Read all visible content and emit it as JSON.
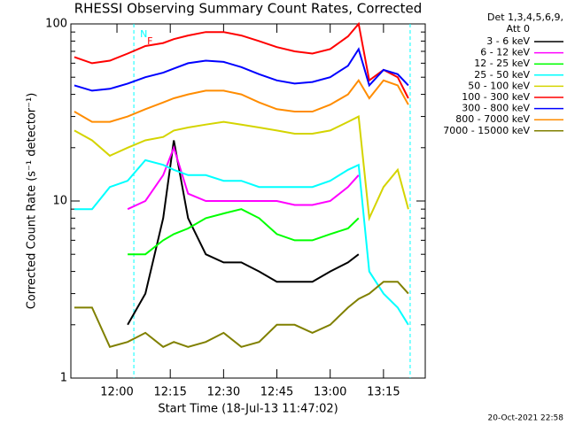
{
  "chart_data": {
    "type": "line",
    "title": "RHESSI Observing Summary Count Rates, Corrected",
    "legend_title": [
      "Det 1,3,4,5,6,9,",
      "Att 0"
    ],
    "x_label": "Start Time (18-Jul-13 11:47:02)",
    "y_label": "Corrected Count Rate (s⁻¹ detector⁻¹)",
    "footer": "20-Oct-2021 22:58",
    "log_y": true,
    "legend": "right",
    "xlim": [
      707.03,
      806.75
    ],
    "xticks": [
      {
        "value": 720,
        "label": "12:00"
      },
      {
        "value": 735,
        "label": "12:15"
      },
      {
        "value": 750,
        "label": "12:30"
      },
      {
        "value": 765,
        "label": "12:45"
      },
      {
        "value": 780,
        "label": "13:00"
      },
      {
        "value": 795,
        "label": "13:15"
      }
    ],
    "ylim": [
      1,
      100
    ],
    "yticks": [
      1,
      10,
      100
    ],
    "yminorticks": [
      2,
      3,
      4,
      5,
      6,
      7,
      8,
      9,
      20,
      30,
      40,
      50,
      60,
      70,
      80,
      90
    ],
    "vlines": [
      724.75,
      802.5
    ],
    "vline_color": "#00ffff",
    "flags": [
      {
        "text": "N",
        "x": 726.5,
        "color": "#00ffff"
      },
      {
        "text": "F",
        "x": 728.5,
        "color": "#ff0000"
      }
    ],
    "x": [
      708,
      713,
      718,
      723,
      728,
      733,
      736,
      740,
      745,
      750,
      755,
      760,
      765,
      770,
      775,
      780,
      785,
      788,
      791,
      795,
      799,
      802
    ],
    "series": [
      {
        "name": "3 - 6 keV",
        "color": "#000000",
        "values": [
          null,
          null,
          null,
          2,
          3,
          8,
          22,
          8,
          5,
          4.5,
          4.5,
          4,
          3.5,
          3.5,
          3.5,
          4,
          4.5,
          5,
          null,
          null,
          null,
          null
        ]
      },
      {
        "name": "6 - 12 keV",
        "color": "#ff00ff",
        "values": [
          null,
          null,
          null,
          9,
          10,
          14,
          20,
          11,
          10,
          10,
          10,
          10,
          10,
          9.5,
          9.5,
          10,
          12,
          14,
          null,
          null,
          null,
          null
        ]
      },
      {
        "name": "12 - 25 keV",
        "color": "#00ff00",
        "values": [
          null,
          null,
          null,
          5,
          5,
          6,
          6.5,
          7,
          8,
          8.5,
          9,
          8,
          6.5,
          6,
          6,
          6.5,
          7,
          8,
          null,
          null,
          null,
          null
        ]
      },
      {
        "name": "25 - 50 keV",
        "color": "#00ffff",
        "values": [
          9,
          9,
          12,
          13,
          17,
          16,
          15,
          14,
          14,
          13,
          13,
          12,
          12,
          12,
          12,
          13,
          15,
          16,
          4,
          3,
          2.5,
          2
        ]
      },
      {
        "name": "50 - 100 keV",
        "color": "#d4d400",
        "values": [
          25,
          22,
          18,
          20,
          22,
          23,
          25,
          26,
          27,
          28,
          27,
          26,
          25,
          24,
          24,
          25,
          28,
          30,
          8,
          12,
          15,
          9
        ]
      },
      {
        "name": "100 - 300 keV",
        "color": "#ff0000",
        "values": [
          65,
          60,
          62,
          68,
          75,
          78,
          82,
          86,
          90,
          90,
          86,
          80,
          74,
          70,
          68,
          72,
          85,
          100,
          48,
          55,
          50,
          38
        ]
      },
      {
        "name": "300 - 800 keV",
        "color": "#0000ff",
        "values": [
          45,
          42,
          43,
          46,
          50,
          53,
          56,
          60,
          62,
          61,
          57,
          52,
          48,
          46,
          47,
          50,
          58,
          72,
          45,
          55,
          52,
          45
        ]
      },
      {
        "name": "800 - 7000 keV",
        "color": "#ff8c00",
        "values": [
          32,
          28,
          28,
          30,
          33,
          36,
          38,
          40,
          42,
          42,
          40,
          36,
          33,
          32,
          32,
          35,
          40,
          48,
          38,
          48,
          45,
          35
        ]
      },
      {
        "name": "7000 - 15000 keV",
        "color": "#808000",
        "values": [
          2.5,
          2.5,
          1.5,
          1.6,
          1.8,
          1.5,
          1.6,
          1.5,
          1.6,
          1.8,
          1.5,
          1.6,
          2,
          2,
          1.8,
          2,
          2.5,
          2.8,
          3,
          3.5,
          3.5,
          3
        ]
      }
    ]
  }
}
